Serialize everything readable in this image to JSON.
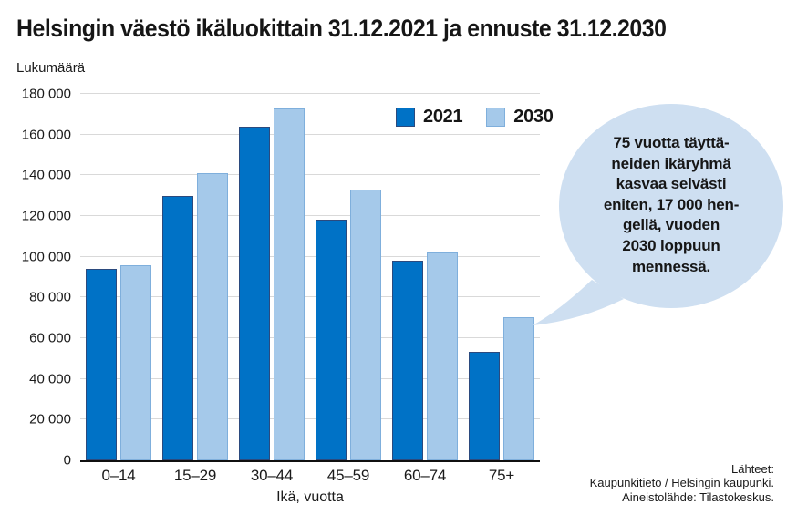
{
  "title": "Helsingin väestö ikäluokittain 31.12.2021 ja ennuste 31.12.2030",
  "y_axis_title": "Lukumäärä",
  "x_axis_title": "Ikä, vuotta",
  "callout": {
    "text": "75 vuotta täyttä-\nneiden ikäryhmä\nkasvaa selvästi\neniten, 17 000 hen-\ngellä, vuoden\n2030 loppuun\nmennessä.",
    "fill": "#cedff1"
  },
  "sources": {
    "text": "Lähteet:\nKaupunkitieto / Helsingin kaupunki.\nAineistolähde: Tilastokeskus."
  },
  "chart_data": {
    "type": "bar",
    "title": "Helsingin väestö ikäluokittain 31.12.2021 ja ennuste 31.12.2030",
    "xlabel": "Ikä, vuotta",
    "ylabel": "Lukumäärä",
    "categories": [
      "0–14",
      "15–29",
      "30–44",
      "45–59",
      "60–74",
      "75+"
    ],
    "series": [
      {
        "name": "2021",
        "color": "#0072c6",
        "border": "#2b4a7e",
        "values": [
          94000,
          130000,
          164000,
          118000,
          98000,
          53500
        ]
      },
      {
        "name": "2030",
        "color": "#a5c9ea",
        "border": "#7fafdc",
        "values": [
          96000,
          141000,
          173000,
          133000,
          102000,
          70500
        ]
      }
    ],
    "ylim": [
      0,
      180000
    ],
    "yticks": [
      {
        "value": 0,
        "label": "0"
      },
      {
        "value": 20000,
        "label": "20 000"
      },
      {
        "value": 40000,
        "label": "40 000"
      },
      {
        "value": 60000,
        "label": "60 000"
      },
      {
        "value": 80000,
        "label": "80 000"
      },
      {
        "value": 100000,
        "label": "100 000"
      },
      {
        "value": 120000,
        "label": "120 000"
      },
      {
        "value": 140000,
        "label": "140 000"
      },
      {
        "value": 160000,
        "label": "160 000"
      },
      {
        "value": 180000,
        "label": "180 000"
      }
    ],
    "grid": "horizontal",
    "legend_position": "top-right-inside",
    "annotation": "75 vuotta täyttäneiden ikäryhmä kasvaa selvästi eniten, 17 000 hengellä, vuoden 2030 loppuun mennessä."
  }
}
